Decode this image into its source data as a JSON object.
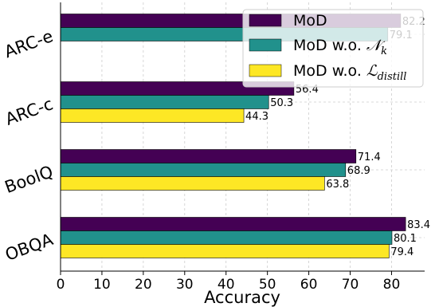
{
  "chart_data": {
    "type": "bar",
    "orientation": "horizontal",
    "categories": [
      "ARC-e",
      "ARC-c",
      "BoolQ",
      "OBQA"
    ],
    "series": [
      {
        "name": "MoD",
        "values": [
          82.2,
          56.4,
          71.4,
          83.4
        ],
        "color": "#440154"
      },
      {
        "name": "MoD w.o. N_k",
        "values": [
          79.1,
          50.3,
          68.9,
          80.1
        ],
        "color": "#21918c"
      },
      {
        "name": "MoD w.o. L_distill",
        "values": [
          null,
          44.3,
          63.8,
          79.4
        ],
        "color": "#fde725"
      }
    ],
    "value_labels": [
      [
        "82.2",
        "56.4",
        "71.4",
        "83.4"
      ],
      [
        "79.1",
        "50.3",
        "68.9",
        "80.1"
      ],
      [
        "",
        "44.3",
        "63.8",
        "79.4"
      ]
    ],
    "xlabel": "Accuracy",
    "ylabel": "",
    "xlim": [
      0,
      88
    ],
    "xticks": [
      0,
      10,
      20,
      30,
      40,
      50,
      60,
      70,
      80
    ],
    "grid": true,
    "legend_position": "top-right"
  }
}
